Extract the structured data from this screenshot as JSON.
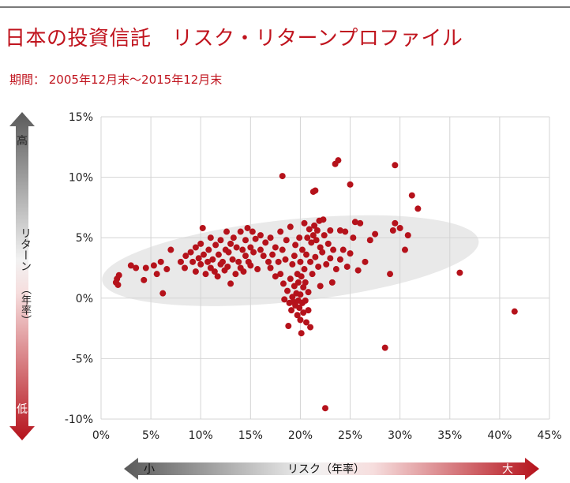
{
  "header": {
    "title": "日本の投資信託　リスク・リターンプロファイル",
    "period": "期間：  2005年12月末～2015年12月末"
  },
  "colors": {
    "title": "#c0141e",
    "point": "#b5121b",
    "ellipse": "#e9e9e9",
    "grid": "#d4d4d4"
  },
  "axis": {
    "y_high": "高",
    "y_low": "低",
    "y_title": "リターン",
    "y_title_paren": "（年率）",
    "x_small": "小",
    "x_large": "大",
    "x_title": "リスク（年率）"
  },
  "chart_data": {
    "type": "scatter",
    "xlabel": "リスク（年率）",
    "ylabel": "リターン（年率）",
    "xlim": [
      0,
      45
    ],
    "ylim": [
      -10,
      15
    ],
    "x_ticks": [
      "0%",
      "5%",
      "10%",
      "15%",
      "20%",
      "25%",
      "30%",
      "35%",
      "40%",
      "45%"
    ],
    "y_ticks": [
      "15%",
      "10%",
      "5%",
      "0%",
      "-5%",
      "-10%"
    ],
    "grid": true,
    "points": [
      [
        1.5,
        1.3
      ],
      [
        1.6,
        1.6
      ],
      [
        1.8,
        1.9
      ],
      [
        1.7,
        1.1
      ],
      [
        3.0,
        2.7
      ],
      [
        3.5,
        2.5
      ],
      [
        4.5,
        2.5
      ],
      [
        4.3,
        1.5
      ],
      [
        5.3,
        2.7
      ],
      [
        5.6,
        2.0
      ],
      [
        6.0,
        3.0
      ],
      [
        6.2,
        0.4
      ],
      [
        6.6,
        2.4
      ],
      [
        7.0,
        4.0
      ],
      [
        8.0,
        3.0
      ],
      [
        8.4,
        2.5
      ],
      [
        8.5,
        3.5
      ],
      [
        9.0,
        3.8
      ],
      [
        9.2,
        3.0
      ],
      [
        9.5,
        2.2
      ],
      [
        9.5,
        4.2
      ],
      [
        9.8,
        3.3
      ],
      [
        10.0,
        2.8
      ],
      [
        10.0,
        4.5
      ],
      [
        10.2,
        5.8
      ],
      [
        10.3,
        3.6
      ],
      [
        10.5,
        2.0
      ],
      [
        10.7,
        3.0
      ],
      [
        10.8,
        4.0
      ],
      [
        11.0,
        2.5
      ],
      [
        11.0,
        5.0
      ],
      [
        11.2,
        3.2
      ],
      [
        11.4,
        2.2
      ],
      [
        11.5,
        4.4
      ],
      [
        11.7,
        1.8
      ],
      [
        11.8,
        3.6
      ],
      [
        12.0,
        2.8
      ],
      [
        12.0,
        4.8
      ],
      [
        12.2,
        3.0
      ],
      [
        12.4,
        2.3
      ],
      [
        12.5,
        4.0
      ],
      [
        12.6,
        5.5
      ],
      [
        12.7,
        2.6
      ],
      [
        12.8,
        3.8
      ],
      [
        13.0,
        1.2
      ],
      [
        13.0,
        4.5
      ],
      [
        13.2,
        3.2
      ],
      [
        13.3,
        5.0
      ],
      [
        13.5,
        2.0
      ],
      [
        13.6,
        4.2
      ],
      [
        13.8,
        3.0
      ],
      [
        14.0,
        5.5
      ],
      [
        14.0,
        2.5
      ],
      [
        14.2,
        4.0
      ],
      [
        14.3,
        2.2
      ],
      [
        14.5,
        3.5
      ],
      [
        14.5,
        4.8
      ],
      [
        14.7,
        5.8
      ],
      [
        14.8,
        3.0
      ],
      [
        15.0,
        4.2
      ],
      [
        15.0,
        2.7
      ],
      [
        15.2,
        5.5
      ],
      [
        15.3,
        3.8
      ],
      [
        15.5,
        4.9
      ],
      [
        15.7,
        2.4
      ],
      [
        16.0,
        5.2
      ],
      [
        16.0,
        4.0
      ],
      [
        16.3,
        3.5
      ],
      [
        16.5,
        4.6
      ],
      [
        16.8,
        3.0
      ],
      [
        17.0,
        5.0
      ],
      [
        17.0,
        2.5
      ],
      [
        17.2,
        3.6
      ],
      [
        17.5,
        1.8
      ],
      [
        17.5,
        4.2
      ],
      [
        17.8,
        3.0
      ],
      [
        18.0,
        5.5
      ],
      [
        18.0,
        2.0
      ],
      [
        18.2,
        4.0
      ],
      [
        18.2,
        10.1
      ],
      [
        18.3,
        1.2
      ],
      [
        18.4,
        -0.1
      ],
      [
        18.5,
        3.2
      ],
      [
        18.6,
        4.8
      ],
      [
        18.7,
        0.6
      ],
      [
        18.8,
        -2.3
      ],
      [
        18.9,
        -0.4
      ],
      [
        19.0,
        1.6
      ],
      [
        19.0,
        5.9
      ],
      [
        19.1,
        -1.0
      ],
      [
        19.2,
        2.8
      ],
      [
        19.2,
        0.1
      ],
      [
        19.3,
        -0.3
      ],
      [
        19.4,
        3.5
      ],
      [
        19.4,
        1.0
      ],
      [
        19.5,
        -0.6
      ],
      [
        19.5,
        4.4
      ],
      [
        19.6,
        0.4
      ],
      [
        19.7,
        -1.4
      ],
      [
        19.7,
        2.0
      ],
      [
        19.8,
        -0.2
      ],
      [
        19.8,
        1.3
      ],
      [
        19.9,
        5.0
      ],
      [
        19.9,
        -0.8
      ],
      [
        20.0,
        0.3
      ],
      [
        20.0,
        -1.8
      ],
      [
        20.0,
        3.0
      ],
      [
        20.1,
        -2.9
      ],
      [
        20.1,
        1.8
      ],
      [
        20.2,
        -0.4
      ],
      [
        20.2,
        4.0
      ],
      [
        20.3,
        0.9
      ],
      [
        20.3,
        -1.2
      ],
      [
        20.4,
        6.2
      ],
      [
        20.4,
        2.4
      ],
      [
        20.5,
        -0.2
      ],
      [
        20.5,
        1.3
      ],
      [
        20.6,
        -2.0
      ],
      [
        20.6,
        3.6
      ],
      [
        20.7,
        5.0
      ],
      [
        20.8,
        -1.0
      ],
      [
        20.8,
        0.5
      ],
      [
        20.9,
        5.7
      ],
      [
        21.0,
        3.0
      ],
      [
        21.0,
        -2.4
      ],
      [
        21.1,
        4.6
      ],
      [
        21.2,
        2.0
      ],
      [
        21.3,
        5.2
      ],
      [
        21.3,
        8.8
      ],
      [
        21.4,
        6.0
      ],
      [
        21.5,
        3.4
      ],
      [
        21.5,
        8.9
      ],
      [
        21.6,
        4.8
      ],
      [
        21.7,
        5.6
      ],
      [
        21.8,
        2.6
      ],
      [
        21.9,
        6.4
      ],
      [
        22.0,
        4.2
      ],
      [
        22.0,
        1.0
      ],
      [
        22.2,
        3.8
      ],
      [
        22.3,
        6.5
      ],
      [
        22.4,
        5.2
      ],
      [
        22.5,
        -9.1
      ],
      [
        22.6,
        2.8
      ],
      [
        22.8,
        4.5
      ],
      [
        23.0,
        3.3
      ],
      [
        23.0,
        5.6
      ],
      [
        23.2,
        1.3
      ],
      [
        23.3,
        4.0
      ],
      [
        23.5,
        11.1
      ],
      [
        23.6,
        2.4
      ],
      [
        23.8,
        11.4
      ],
      [
        24.0,
        5.6
      ],
      [
        24.0,
        3.2
      ],
      [
        24.3,
        4.0
      ],
      [
        24.5,
        5.5
      ],
      [
        24.7,
        2.6
      ],
      [
        25.0,
        3.7
      ],
      [
        25.0,
        9.4
      ],
      [
        25.3,
        5.0
      ],
      [
        25.5,
        6.3
      ],
      [
        25.8,
        2.3
      ],
      [
        26.0,
        6.2
      ],
      [
        26.5,
        3.0
      ],
      [
        27.0,
        4.8
      ],
      [
        27.5,
        5.3
      ],
      [
        28.5,
        -4.1
      ],
      [
        29.0,
        2.0
      ],
      [
        29.3,
        5.6
      ],
      [
        29.5,
        11.0
      ],
      [
        29.5,
        6.2
      ],
      [
        30.0,
        5.8
      ],
      [
        30.5,
        4.0
      ],
      [
        30.8,
        5.2
      ],
      [
        31.2,
        8.5
      ],
      [
        31.8,
        7.4
      ],
      [
        36.0,
        2.1
      ],
      [
        41.5,
        -1.1
      ]
    ],
    "ellipse": {
      "cx": 19.0,
      "cy": 3.1,
      "rx": 19.0,
      "ry": 3.4,
      "angle_deg": 6
    }
  }
}
